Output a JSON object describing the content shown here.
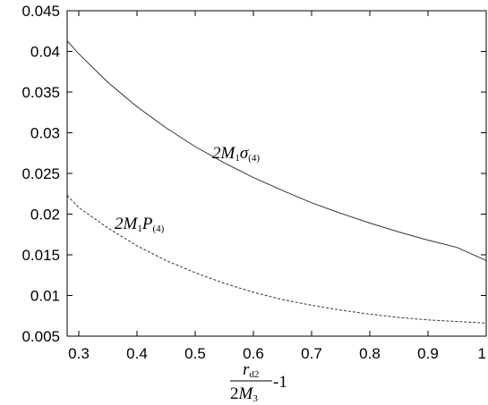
{
  "chart_data": {
    "type": "line",
    "xlim": [
      0.28,
      1.0
    ],
    "ylim": [
      0.005,
      0.045
    ],
    "x_ticks": [
      "0.3",
      "0.4",
      "0.5",
      "0.6",
      "0.7",
      "0.8",
      "0.9",
      "1"
    ],
    "y_ticks": [
      "0.005",
      "0.01",
      "0.015",
      "0.02",
      "0.025",
      "0.03",
      "0.035",
      "0.04",
      "0.045"
    ],
    "xlabel": {
      "numerator": "r",
      "numerator_sub": "d2",
      "denominator_coef": "2",
      "denominator": "M",
      "denominator_sub": "3",
      "suffix": " -1"
    },
    "series": [
      {
        "name": "2M1σ(4)",
        "label_parts": {
          "coef": "2",
          "m": "M",
          "m_sub": "1",
          "sym": "σ",
          "sym_sub": "(4)"
        },
        "style": "solid",
        "color": "#333333",
        "x": [
          0.28,
          0.3,
          0.35,
          0.4,
          0.45,
          0.5,
          0.55,
          0.6,
          0.65,
          0.7,
          0.75,
          0.8,
          0.85,
          0.9,
          0.95,
          1.0
        ],
        "y": [
          0.0413,
          0.0397,
          0.0362,
          0.0332,
          0.0306,
          0.0283,
          0.0263,
          0.0245,
          0.0229,
          0.0214,
          0.0201,
          0.0189,
          0.0178,
          0.0168,
          0.0159,
          0.0143
        ]
      },
      {
        "name": "2M1P(4)",
        "label_parts": {
          "coef": "2",
          "m": "M",
          "m_sub": "1",
          "sym": "P",
          "sym_sub": "(4)"
        },
        "style": "dashed",
        "color": "#333333",
        "x": [
          0.28,
          0.3,
          0.35,
          0.4,
          0.45,
          0.5,
          0.55,
          0.6,
          0.65,
          0.7,
          0.75,
          0.8,
          0.85,
          0.9,
          0.95,
          1.0
        ],
        "y": [
          0.0223,
          0.0208,
          0.0183,
          0.0161,
          0.0143,
          0.0128,
          0.0115,
          0.0104,
          0.0095,
          0.0088,
          0.0082,
          0.0077,
          0.0073,
          0.007,
          0.0068,
          0.0066
        ]
      }
    ]
  }
}
